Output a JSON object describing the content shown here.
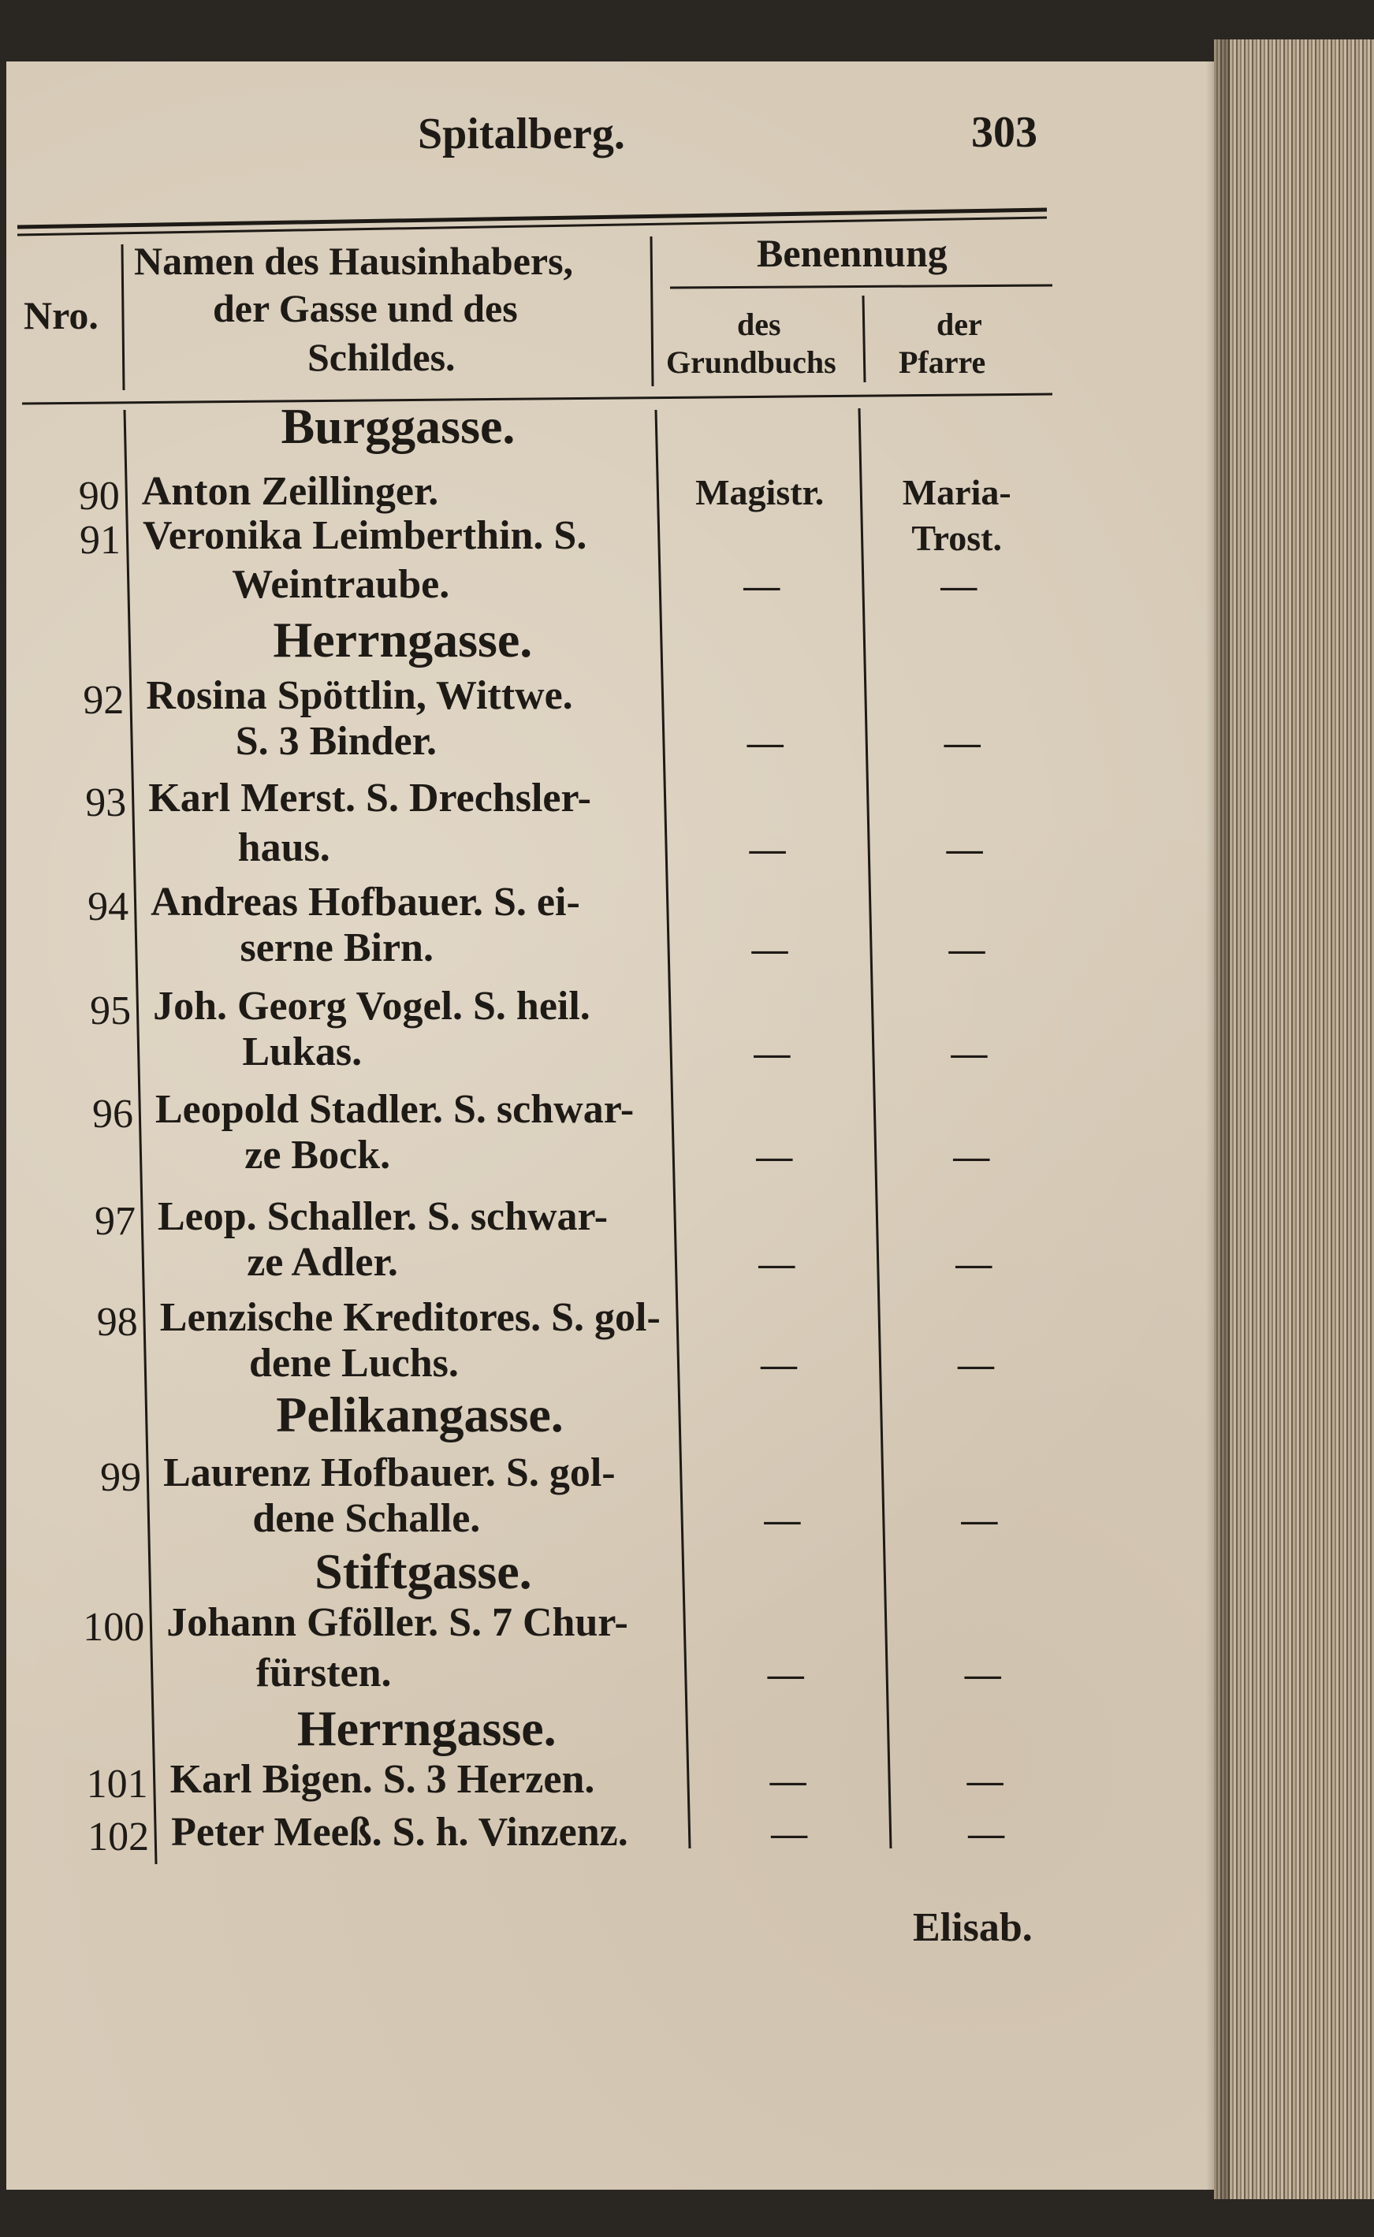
{
  "running_head": "Spitalberg.",
  "page_number": "303",
  "table_header": {
    "nro": "Nro.",
    "name_lines": [
      "Namen des Hausinhabers,",
      "der Gasse und des",
      "Schildes."
    ],
    "benennung": "Benennung",
    "grundbuch_lines": [
      "des",
      "Grundbuchs"
    ],
    "pfarre_lines": [
      "der",
      "Pfarre"
    ]
  },
  "rows": [
    {
      "type": "street",
      "name": "Burggasse."
    },
    {
      "type": "entry",
      "nro": "90",
      "lines": [
        "Anton Zeillinger."
      ],
      "grundbuch": [
        "Magistr."
      ],
      "pfarre": [
        "Maria-",
        "Trost."
      ]
    },
    {
      "type": "entry",
      "nro": "91",
      "lines": [
        "Veronika Leimberthin. S.",
        "Weintraube."
      ],
      "grundbuch": [
        "—"
      ],
      "pfarre": [
        "—"
      ]
    },
    {
      "type": "street",
      "name": "Herrngasse."
    },
    {
      "type": "entry",
      "nro": "92",
      "lines": [
        "Rosina Spöttlin, Wittwe.",
        "S. 3 Binder."
      ],
      "grundbuch": [
        "—"
      ],
      "pfarre": [
        "—"
      ]
    },
    {
      "type": "entry",
      "nro": "93",
      "lines": [
        "Karl Merst. S. Drechsler-",
        "haus."
      ],
      "grundbuch": [
        "—"
      ],
      "pfarre": [
        "—"
      ]
    },
    {
      "type": "entry",
      "nro": "94",
      "lines": [
        "Andreas Hofbauer. S. ei-",
        "serne Birn."
      ],
      "grundbuch": [
        "—"
      ],
      "pfarre": [
        "—"
      ]
    },
    {
      "type": "entry",
      "nro": "95",
      "lines": [
        "Joh. Georg Vogel. S. heil.",
        "Lukas."
      ],
      "grundbuch": [
        "—"
      ],
      "pfarre": [
        "—"
      ]
    },
    {
      "type": "entry",
      "nro": "96",
      "lines": [
        "Leopold Stadler. S. schwar-",
        "ze Bock."
      ],
      "grundbuch": [
        "—"
      ],
      "pfarre": [
        "—"
      ]
    },
    {
      "type": "entry",
      "nro": "97",
      "lines": [
        "Leop. Schaller. S. schwar-",
        "ze Adler."
      ],
      "grundbuch": [
        "—"
      ],
      "pfarre": [
        "—"
      ]
    },
    {
      "type": "entry",
      "nro": "98",
      "lines": [
        "Lenzische Kreditores. S. gol-",
        "dene Luchs."
      ],
      "grundbuch": [
        "—"
      ],
      "pfarre": [
        "—"
      ]
    },
    {
      "type": "street",
      "name": "Pelikangasse."
    },
    {
      "type": "entry",
      "nro": "99",
      "lines": [
        "Laurenz Hofbauer. S. gol-",
        "dene Schalle."
      ],
      "grundbuch": [
        "—"
      ],
      "pfarre": [
        "—"
      ]
    },
    {
      "type": "street",
      "name": "Stiftgasse."
    },
    {
      "type": "entry",
      "nro": "100",
      "lines": [
        "Johann Gföller. S. 7 Chur-",
        "fürsten."
      ],
      "grundbuch": [
        "—"
      ],
      "pfarre": [
        "—"
      ]
    },
    {
      "type": "street",
      "name": "Herrngasse."
    },
    {
      "type": "entry",
      "nro": "101",
      "lines": [
        "Karl Bigen. S. 3 Herzen."
      ],
      "grundbuch": [
        "—"
      ],
      "pfarre": [
        "—"
      ]
    },
    {
      "type": "entry",
      "nro": "102",
      "lines": [
        "Peter Meeß. S. h. Vinzenz."
      ],
      "grundbuch": [
        "—"
      ],
      "pfarre": [
        "—"
      ]
    }
  ],
  "catchword": "Elisab."
}
